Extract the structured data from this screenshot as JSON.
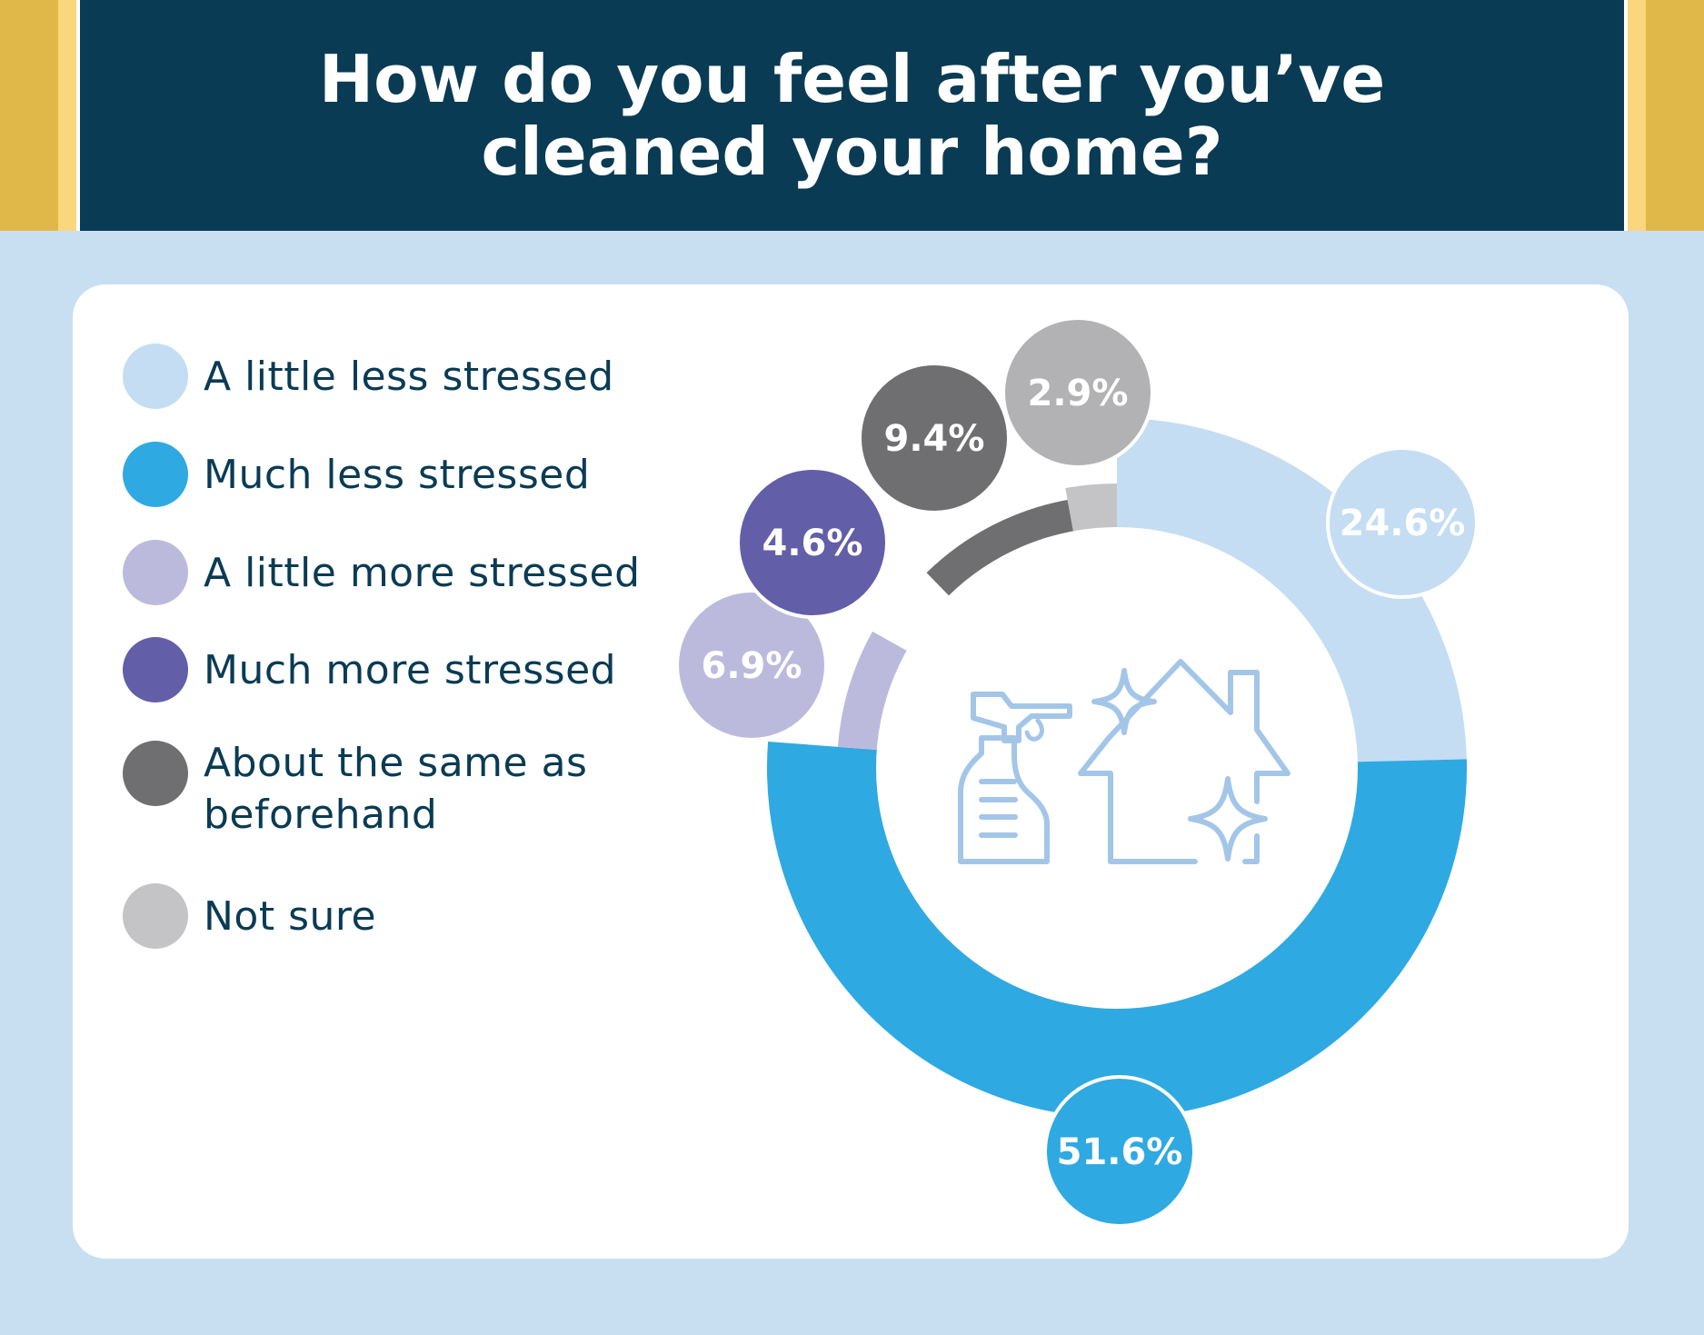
{
  "title": "How do you feel after you’ve cleaned your home?",
  "icons": [
    "spray-bottle-icon",
    "sparkle-icon",
    "house-icon"
  ],
  "chart_data": {
    "type": "pie",
    "title": "How do you feel after you’ve cleaned your home?",
    "donut": true,
    "legend_position": "left",
    "start_angle_deg": 0,
    "direction": "clockwise",
    "slices": [
      {
        "label": "A little less stressed",
        "value": 24.6,
        "display": "24.6%",
        "color": "#c4ddf3"
      },
      {
        "label": "Much less stressed",
        "value": 51.6,
        "display": "51.6%",
        "color": "#2fa9e1"
      },
      {
        "label": "A little more stressed",
        "value": 6.9,
        "display": "6.9%",
        "color": "#bcbadc"
      },
      {
        "label": "Much more stressed",
        "value": 4.6,
        "display": "4.6%",
        "color": "#625ea7"
      },
      {
        "label": "About the same as beforehand",
        "value": 9.4,
        "display": "9.4%",
        "color": "#6f6f71"
      },
      {
        "label": "Not sure",
        "value": 2.9,
        "display": "2.9%",
        "color": "#c4c4c6"
      }
    ],
    "bubble_colors": [
      "#c4ddf3",
      "#2fa9e1",
      "#bcbadc",
      "#625ea7",
      "#6f6f71",
      "#b2b1b3"
    ],
    "legend_colors": [
      "#c4ddf3",
      "#2fa9e1",
      "#bcbadc",
      "#625ea7",
      "#6f6f71",
      "#c4c4c6"
    ]
  },
  "legend": {
    "items": [
      "A little less stressed",
      "Much less stressed",
      "A little more stressed",
      "Much more stressed",
      "About the same as beforehand",
      "Not sure"
    ]
  }
}
